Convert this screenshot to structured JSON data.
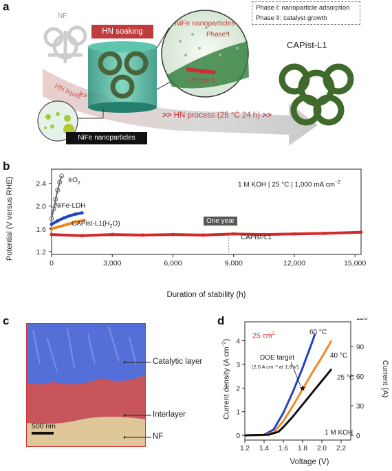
{
  "panel_a": {
    "label": "a",
    "nf_label": "NF",
    "soak_label": "HN soaking",
    "hn_liquid_label": "HN liquid",
    "nife_box_label": "NiFe nanoparticles",
    "hn_process_label": "HN process (25 °C 24 h)",
    "zoom_title": "NiFe nanoparticles",
    "zoom_phase1": "Phase I",
    "zoom_phase2": "Phase II",
    "phase_box": [
      "Phase I: nanoparticle adsorption",
      "Phase II: catalyst growth"
    ],
    "product_label": "CAPist-L1",
    "arrows": ">>"
  },
  "panel_b": {
    "label": "b",
    "ylabel": "Potential (V versus RHE)",
    "xlabel": "Duration of stability (h)",
    "conditions": "1 M KOH | 25 °C | 1,000 mA cm",
    "conditions_sup": "−2",
    "one_year_label": "One year",
    "series_labels": {
      "iro2": "IrO",
      "iro2_sub": "2",
      "nife": "NiFe-LDH",
      "capist_h2o": "CAPist-L1(H",
      "h2o_sub": "2",
      "h2o_end": "O)",
      "capist": "CAPist-L1"
    },
    "xticks": [
      "0",
      "3,000",
      "6,000",
      "9,000",
      "12,000",
      "15,000"
    ],
    "yticks": [
      "1.2",
      "1.6",
      "2.0",
      "2.4"
    ],
    "colors": {
      "iro2": "#666666",
      "nife": "#2142c4",
      "capist_h2o": "#f08a22",
      "capist": "#d22b2b"
    }
  },
  "panel_c": {
    "label": "c",
    "layers": [
      "Catalytic layer",
      "Interlayer",
      "NF"
    ],
    "scale_bar": "500 nm"
  },
  "panel_d": {
    "label": "d",
    "ylabel_left": "Current density (A cm",
    "ylabel_left_sup": "−2",
    "ylabel_left_end": ")",
    "ylabel_right": "Current (A)",
    "xlabel": "Voltage (V)",
    "area_label": "25 cm",
    "area_sup": "2",
    "doe_label": "DOE target",
    "doe_sub": "(2.0 A cm⁻² at 1.8 V)",
    "koh_label": "1 M KOH",
    "xticks": [
      "1.2",
      "1.4",
      "1.6",
      "1.8",
      "2.0",
      "2.2"
    ],
    "yticks_left": [
      "0",
      "1",
      "2",
      "3",
      "4"
    ],
    "yticks_right": [
      "0",
      "30",
      "60",
      "90",
      "120"
    ],
    "temps": [
      "60 °C",
      "40 °C",
      "25 °C"
    ],
    "colors": {
      "t60": "#2142c4",
      "t40": "#f08a22",
      "t25": "#111111"
    }
  },
  "chart_data": [
    {
      "type": "line",
      "panel": "b",
      "xlabel": "Duration of stability (h)",
      "ylabel": "Potential (V versus RHE)",
      "xlim": [
        0,
        15300
      ],
      "ylim": [
        1.15,
        2.65
      ],
      "annotation": {
        "text": "One year",
        "x": 8760
      },
      "series": [
        {
          "name": "IrO2",
          "x": [
            0,
            100,
            200,
            300,
            400,
            500
          ],
          "y": [
            1.78,
            1.95,
            2.12,
            2.28,
            2.42,
            2.53
          ]
        },
        {
          "name": "NiFe-LDH",
          "x": [
            0,
            300,
            600,
            900,
            1200,
            1500
          ],
          "y": [
            1.68,
            1.74,
            1.79,
            1.83,
            1.86,
            1.88
          ]
        },
        {
          "name": "CAPist-L1(H2O)",
          "x": [
            0,
            400,
            800,
            1200,
            1600
          ],
          "y": [
            1.6,
            1.64,
            1.68,
            1.72,
            1.75
          ]
        },
        {
          "name": "CAPist-L1",
          "x": [
            0,
            1500,
            3000,
            4500,
            6000,
            7500,
            9000,
            10500,
            12000,
            13500,
            15300
          ],
          "y": [
            1.5,
            1.48,
            1.5,
            1.49,
            1.5,
            1.49,
            1.51,
            1.5,
            1.51,
            1.52,
            1.54
          ]
        }
      ]
    },
    {
      "type": "line",
      "panel": "d",
      "xlabel": "Voltage (V)",
      "ylabel": "Current density (A cm−2)",
      "xlim": [
        1.2,
        2.3
      ],
      "ylim": [
        -0.2,
        4.8
      ],
      "y2lim": [
        -4.8,
        115
      ],
      "annotation": {
        "text": "DOE target",
        "x": 1.8,
        "y": 2.0
      },
      "series": [
        {
          "name": "60 °C",
          "x": [
            1.2,
            1.4,
            1.5,
            1.6,
            1.7,
            1.8,
            1.9,
            1.93
          ],
          "y": [
            0,
            0.02,
            0.25,
            0.95,
            1.85,
            2.85,
            3.95,
            4.3
          ]
        },
        {
          "name": "40 °C",
          "x": [
            1.2,
            1.4,
            1.5,
            1.6,
            1.7,
            1.8,
            1.9,
            2.0,
            2.1
          ],
          "y": [
            0,
            0.01,
            0.12,
            0.6,
            1.25,
            1.95,
            2.65,
            3.3,
            4.0
          ]
        },
        {
          "name": "25 °C",
          "x": [
            1.2,
            1.45,
            1.55,
            1.6,
            1.7,
            1.8,
            1.9,
            2.0,
            2.1
          ],
          "y": [
            0,
            0.03,
            0.15,
            0.35,
            0.8,
            1.3,
            1.8,
            2.3,
            2.8
          ]
        }
      ]
    }
  ]
}
